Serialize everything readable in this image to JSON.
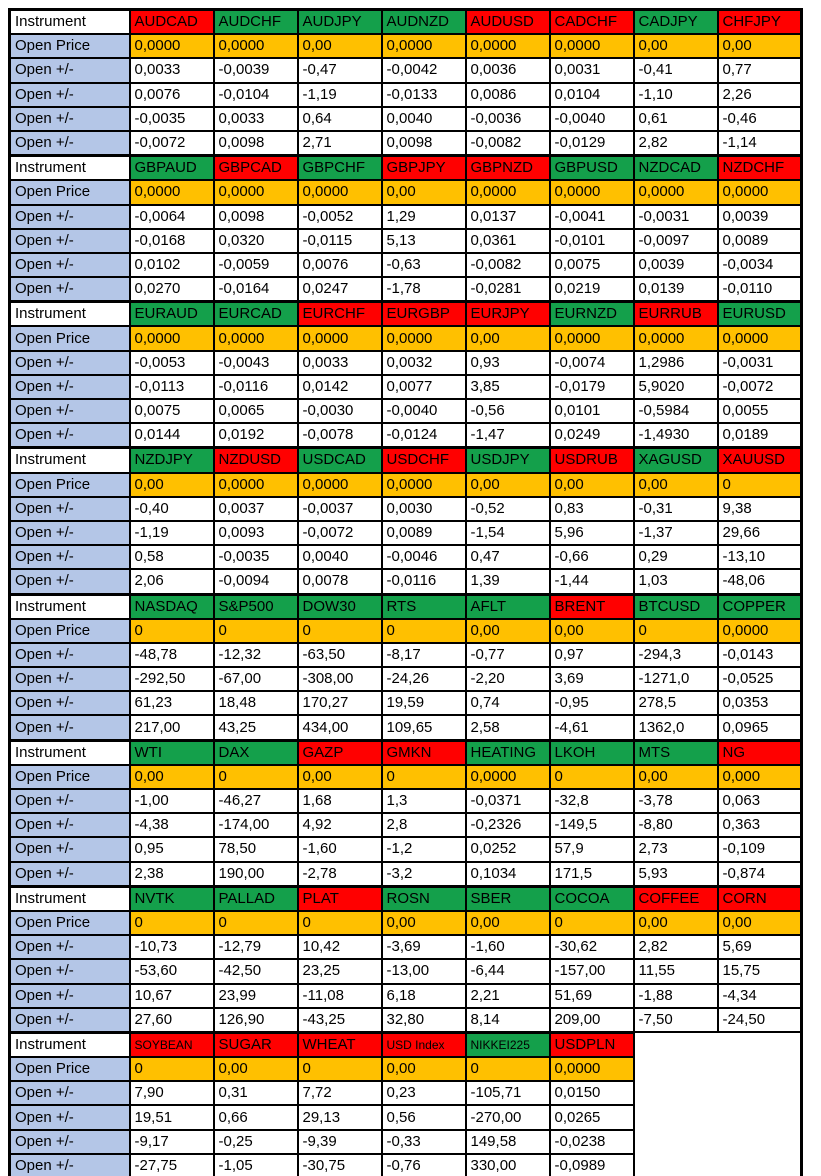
{
  "table": {
    "instrument_label": "Instrument",
    "open_price_label": "Open Price",
    "open_change_label": "Open +/-",
    "colors": {
      "green": "#14A04B",
      "red": "#FF0000",
      "price_bg": "#FFC000",
      "label_bg": "#B4C6E7"
    },
    "blocks": [
      {
        "instruments": [
          {
            "name": "AUDCAD",
            "color": "red"
          },
          {
            "name": "AUDCHF",
            "color": "green"
          },
          {
            "name": "AUDJPY",
            "color": "green"
          },
          {
            "name": "AUDNZD",
            "color": "green"
          },
          {
            "name": "AUDUSD",
            "color": "red"
          },
          {
            "name": "CADCHF",
            "color": "red"
          },
          {
            "name": "CADJPY",
            "color": "green"
          },
          {
            "name": "CHFJPY",
            "color": "red"
          }
        ],
        "open_price": [
          "0,0000",
          "0,0000",
          "0,00",
          "0,0000",
          "0,0000",
          "0,0000",
          "0,00",
          "0,00"
        ],
        "open_changes": [
          [
            "0,0033",
            "-0,0039",
            "-0,47",
            "-0,0042",
            "0,0036",
            "0,0031",
            "-0,41",
            "0,77"
          ],
          [
            "0,0076",
            "-0,0104",
            "-1,19",
            "-0,0133",
            "0,0086",
            "0,0104",
            "-1,10",
            "2,26"
          ],
          [
            "-0,0035",
            "0,0033",
            "0,64",
            "0,0040",
            "-0,0036",
            "-0,0040",
            "0,61",
            "-0,46"
          ],
          [
            "-0,0072",
            "0,0098",
            "2,71",
            "0,0098",
            "-0,0082",
            "-0,0129",
            "2,82",
            "-1,14"
          ]
        ]
      },
      {
        "instruments": [
          {
            "name": "GBPAUD",
            "color": "green"
          },
          {
            "name": "GBPCAD",
            "color": "red"
          },
          {
            "name": "GBPCHF",
            "color": "green"
          },
          {
            "name": "GBPJPY",
            "color": "red"
          },
          {
            "name": "GBPNZD",
            "color": "red"
          },
          {
            "name": "GBPUSD",
            "color": "green"
          },
          {
            "name": "NZDCAD",
            "color": "green"
          },
          {
            "name": "NZDCHF",
            "color": "red"
          }
        ],
        "open_price": [
          "0,0000",
          "0,0000",
          "0,0000",
          "0,00",
          "0,0000",
          "0,0000",
          "0,0000",
          "0,0000"
        ],
        "open_changes": [
          [
            "-0,0064",
            "0,0098",
            "-0,0052",
            "1,29",
            "0,0137",
            "-0,0041",
            "-0,0031",
            "0,0039"
          ],
          [
            "-0,0168",
            "0,0320",
            "-0,0115",
            "5,13",
            "0,0361",
            "-0,0101",
            "-0,0097",
            "0,0089"
          ],
          [
            "0,0102",
            "-0,0059",
            "0,0076",
            "-0,63",
            "-0,0082",
            "0,0075",
            "0,0039",
            "-0,0034"
          ],
          [
            "0,0270",
            "-0,0164",
            "0,0247",
            "-1,78",
            "-0,0281",
            "0,0219",
            "0,0139",
            "-0,0110"
          ]
        ]
      },
      {
        "instruments": [
          {
            "name": "EURAUD",
            "color": "green"
          },
          {
            "name": "EURCAD",
            "color": "green"
          },
          {
            "name": "EURCHF",
            "color": "red"
          },
          {
            "name": "EURGBP",
            "color": "red"
          },
          {
            "name": "EURJPY",
            "color": "red"
          },
          {
            "name": "EURNZD",
            "color": "green"
          },
          {
            "name": "EURRUB",
            "color": "red"
          },
          {
            "name": "EURUSD",
            "color": "green"
          }
        ],
        "open_price": [
          "0,0000",
          "0,0000",
          "0,0000",
          "0,0000",
          "0,00",
          "0,0000",
          "0,0000",
          "0,0000"
        ],
        "open_changes": [
          [
            "-0,0053",
            "-0,0043",
            "0,0033",
            "0,0032",
            "0,93",
            "-0,0074",
            "1,2986",
            "-0,0031"
          ],
          [
            "-0,0113",
            "-0,0116",
            "0,0142",
            "0,0077",
            "3,85",
            "-0,0179",
            "5,9020",
            "-0,0072"
          ],
          [
            "0,0075",
            "0,0065",
            "-0,0030",
            "-0,0040",
            "-0,56",
            "0,0101",
            "-0,5984",
            "0,0055"
          ],
          [
            "0,0144",
            "0,0192",
            "-0,0078",
            "-0,0124",
            "-1,47",
            "0,0249",
            "-1,4930",
            "0,0189"
          ]
        ]
      },
      {
        "instruments": [
          {
            "name": "NZDJPY",
            "color": "green"
          },
          {
            "name": "NZDUSD",
            "color": "red"
          },
          {
            "name": "USDCAD",
            "color": "green"
          },
          {
            "name": "USDCHF",
            "color": "red"
          },
          {
            "name": "USDJPY",
            "color": "green"
          },
          {
            "name": "USDRUB",
            "color": "red"
          },
          {
            "name": "XAGUSD",
            "color": "green"
          },
          {
            "name": "XAUUSD",
            "color": "red"
          }
        ],
        "open_price": [
          "0,00",
          "0,0000",
          "0,0000",
          "0,0000",
          "0,00",
          "0,00",
          "0,00",
          "0"
        ],
        "open_changes": [
          [
            "-0,40",
            "0,0037",
            "-0,0037",
            "0,0030",
            "-0,52",
            "0,83",
            "-0,31",
            "9,38"
          ],
          [
            "-1,19",
            "0,0093",
            "-0,0072",
            "0,0089",
            "-1,54",
            "5,96",
            "-1,37",
            "29,66"
          ],
          [
            "0,58",
            "-0,0035",
            "0,0040",
            "-0,0046",
            "0,47",
            "-0,66",
            "0,29",
            "-13,10"
          ],
          [
            "2,06",
            "-0,0094",
            "0,0078",
            "-0,0116",
            "1,39",
            "-1,44",
            "1,03",
            "-48,06"
          ]
        ]
      },
      {
        "instruments": [
          {
            "name": "NASDAQ",
            "color": "green"
          },
          {
            "name": "S&P500",
            "color": "green"
          },
          {
            "name": "DOW30",
            "color": "green"
          },
          {
            "name": "RTS",
            "color": "green"
          },
          {
            "name": "AFLT",
            "color": "green"
          },
          {
            "name": "BRENT",
            "color": "red"
          },
          {
            "name": "BTCUSD",
            "color": "green"
          },
          {
            "name": "COPPER",
            "color": "green"
          }
        ],
        "open_price": [
          "0",
          "0",
          "0",
          "0",
          "0,00",
          "0,00",
          "0",
          "0,0000"
        ],
        "open_changes": [
          [
            "-48,78",
            "-12,32",
            "-63,50",
            "-8,17",
            "-0,77",
            "0,97",
            "-294,3",
            "-0,0143"
          ],
          [
            "-292,50",
            "-67,00",
            "-308,00",
            "-24,26",
            "-2,20",
            "3,69",
            "-1271,0",
            "-0,0525"
          ],
          [
            "61,23",
            "18,48",
            "170,27",
            "19,59",
            "0,74",
            "-0,95",
            "278,5",
            "0,0353"
          ],
          [
            "217,00",
            "43,25",
            "434,00",
            "109,65",
            "2,58",
            "-4,61",
            "1362,0",
            "0,0965"
          ]
        ]
      },
      {
        "instruments": [
          {
            "name": "WTI",
            "color": "green"
          },
          {
            "name": "DAX",
            "color": "green"
          },
          {
            "name": "GAZP",
            "color": "red"
          },
          {
            "name": "GMKN",
            "color": "red"
          },
          {
            "name": "HEATING",
            "color": "green"
          },
          {
            "name": "LKOH",
            "color": "green"
          },
          {
            "name": "MTS",
            "color": "green"
          },
          {
            "name": "NG",
            "color": "red"
          }
        ],
        "open_price": [
          "0,00",
          "0",
          "0,00",
          "0",
          "0,0000",
          "0",
          "0,00",
          "0,000"
        ],
        "open_changes": [
          [
            "-1,00",
            "-46,27",
            "1,68",
            "1,3",
            "-0,0371",
            "-32,8",
            "-3,78",
            "0,063"
          ],
          [
            "-4,38",
            "-174,00",
            "4,92",
            "2,8",
            "-0,2326",
            "-149,5",
            "-8,80",
            "0,363"
          ],
          [
            "0,95",
            "78,50",
            "-1,60",
            "-1,2",
            "0,0252",
            "57,9",
            "2,73",
            "-0,109"
          ],
          [
            "2,38",
            "190,00",
            "-2,78",
            "-3,2",
            "0,1034",
            "171,5",
            "5,93",
            "-0,874"
          ]
        ]
      },
      {
        "instruments": [
          {
            "name": "NVTK",
            "color": "green"
          },
          {
            "name": "PALLAD",
            "color": "green"
          },
          {
            "name": "PLAT",
            "color": "red"
          },
          {
            "name": "ROSN",
            "color": "green"
          },
          {
            "name": "SBER",
            "color": "green"
          },
          {
            "name": "COCOA",
            "color": "green"
          },
          {
            "name": "COFFEE",
            "color": "red"
          },
          {
            "name": "CORN",
            "color": "red"
          }
        ],
        "open_price": [
          "0",
          "0",
          "0",
          "0,00",
          "0,00",
          "0",
          "0,00",
          "0,00"
        ],
        "open_changes": [
          [
            "-10,73",
            "-12,79",
            "10,42",
            "-3,69",
            "-1,60",
            "-30,62",
            "2,82",
            "5,69"
          ],
          [
            "-53,60",
            "-42,50",
            "23,25",
            "-13,00",
            "-6,44",
            "-157,00",
            "11,55",
            "15,75"
          ],
          [
            "10,67",
            "23,99",
            "-11,08",
            "6,18",
            "2,21",
            "51,69",
            "-1,88",
            "-4,34"
          ],
          [
            "27,60",
            "126,90",
            "-43,25",
            "32,80",
            "8,14",
            "209,00",
            "-7,50",
            "-24,50"
          ]
        ]
      },
      {
        "instruments": [
          {
            "name": "SOYBEAN",
            "color": "red",
            "shrink": true
          },
          {
            "name": "SUGAR",
            "color": "red"
          },
          {
            "name": "WHEAT",
            "color": "red"
          },
          {
            "name": "USD Index",
            "color": "red",
            "shrink": true
          },
          {
            "name": "NIKKEI225",
            "color": "green",
            "shrink": true
          },
          {
            "name": "USDPLN",
            "color": "red"
          }
        ],
        "open_price": [
          "0",
          "0,00",
          "0",
          "0,00",
          "0",
          "0,0000"
        ],
        "open_changes": [
          [
            "7,90",
            "0,31",
            "7,72",
            "0,23",
            "-105,71",
            "0,0150"
          ],
          [
            "19,51",
            "0,66",
            "29,13",
            "0,56",
            "-270,00",
            "0,0265"
          ],
          [
            "-9,17",
            "-0,25",
            "-9,39",
            "-0,33",
            "149,58",
            "-0,0238"
          ],
          [
            "-27,75",
            "-1,05",
            "-30,75",
            "-0,76",
            "330,00",
            "-0,0989"
          ]
        ]
      }
    ]
  }
}
